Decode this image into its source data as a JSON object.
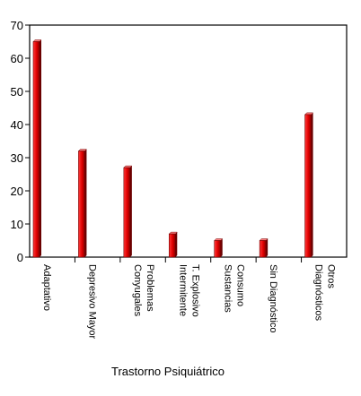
{
  "chart_data": {
    "type": "bar",
    "title": "",
    "xlabel": "Trastorno Psiquiátrico",
    "ylabel": "",
    "ylim": [
      0,
      70
    ],
    "yticks": [
      0,
      10,
      20,
      30,
      40,
      50,
      60,
      70
    ],
    "grid": false,
    "legend": "none",
    "bar_color": "#e00000",
    "categories": [
      [
        "Adaptativo"
      ],
      [
        "Depresivo Mayor"
      ],
      [
        "Problemas",
        "Conyugales"
      ],
      [
        "T. Explosivo",
        "Intermitente"
      ],
      [
        "Consumo",
        "Sustancias"
      ],
      [
        "Sin Diagnóstico"
      ],
      [
        "Otros",
        "Diagnósticos"
      ]
    ],
    "values": [
      65,
      32,
      27,
      7,
      5,
      5,
      43
    ]
  }
}
